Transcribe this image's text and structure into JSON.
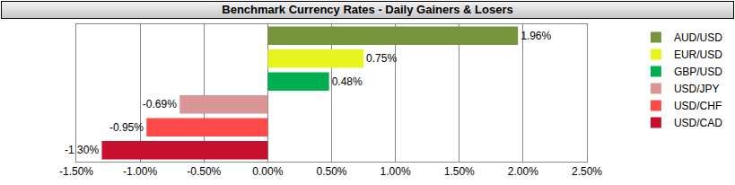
{
  "chart_data": {
    "type": "bar",
    "title": "Benchmark Currency Rates - Daily Gainers & Losers",
    "orientation": "horizontal",
    "series": [
      {
        "name": "AUD/USD",
        "color": "#77933c",
        "values": [
          1.96
        ],
        "value_labels": [
          "1.96%"
        ]
      },
      {
        "name": "EUR/USD",
        "color": "#e6f51e",
        "values": [
          0.75
        ],
        "value_labels": [
          "0.75%"
        ]
      },
      {
        "name": "GBP/USD",
        "color": "#00b050",
        "values": [
          0.48
        ],
        "value_labels": [
          "0.48%"
        ]
      },
      {
        "name": "USD/JPY",
        "color": "#d99694",
        "values": [
          -0.69
        ],
        "value_labels": [
          "-0.69%"
        ]
      },
      {
        "name": "USD/CHF",
        "color": "#ff4a4a",
        "values": [
          -0.95
        ],
        "value_labels": [
          "-0.95%"
        ]
      },
      {
        "name": "USD/CAD",
        "color": "#c8102e",
        "values": [
          -1.3
        ],
        "value_labels": [
          "-1.30%"
        ]
      }
    ],
    "xlim": [
      -1.5,
      2.5
    ],
    "xticks": [
      {
        "value": -1.5,
        "label": "-1.50%"
      },
      {
        "value": -1.0,
        "label": "-1.00%"
      },
      {
        "value": -0.5,
        "label": "-0.50%"
      },
      {
        "value": 0,
        "label": "0.00%"
      },
      {
        "value": 0.5,
        "label": "0.50%"
      },
      {
        "value": 1.0,
        "label": "1.00%"
      },
      {
        "value": 1.5,
        "label": "1.50%"
      },
      {
        "value": 2.0,
        "label": "2.00%"
      },
      {
        "value": 2.5,
        "label": "2.50%"
      }
    ],
    "grid": true,
    "data_labels": true,
    "legend": "right",
    "tick_labels": "x"
  }
}
